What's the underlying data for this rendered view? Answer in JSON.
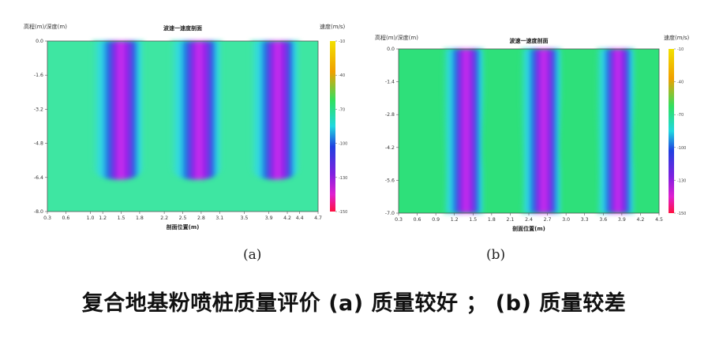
{
  "caption": "复合地基粉喷桩质量评价 (a) 质量较好 ； (b) 质量较差",
  "chart_data": [
    {
      "type": "heatmap",
      "panel_label": "(a)",
      "title": "波速一速度剖面",
      "y_axis_label": "高程(m)/深度(m)",
      "x_axis_label": "剖面位置(m)",
      "colorbar_label": "速度(m/s)",
      "x_ticks": [
        "0.3",
        "0.6",
        "1.0",
        "1.2",
        "1.5",
        "1.8",
        "2.2",
        "2.5",
        "2.8",
        "3.1",
        "3.5",
        "3.9",
        "4.2",
        "4.4",
        "4.7"
      ],
      "y_ticks": [
        "0.0",
        "-1.6",
        "-3.2",
        "-4.8",
        "-6.4",
        "-8.0"
      ],
      "colorbar_ticks": [
        "-10",
        "-40",
        "-70",
        "-100",
        "-130",
        "-150"
      ],
      "xlim": [
        0.3,
        4.7
      ],
      "ylim": [
        -8.0,
        0.0
      ],
      "background_color": "#3ee6a2",
      "anomalies": [
        {
          "x_center": 1.45,
          "half_width": 0.42,
          "bottom_depth": -6.5
        },
        {
          "x_center": 2.72,
          "half_width": 0.42,
          "bottom_depth": -6.5
        },
        {
          "x_center": 4.0,
          "half_width": 0.4,
          "bottom_depth": -6.5
        }
      ]
    },
    {
      "type": "heatmap",
      "panel_label": "(b)",
      "title": "波速一速度剖面",
      "y_axis_label": "高程(m)/深度(m)",
      "x_axis_label": "剖面位置(m)",
      "colorbar_label": "速度(m/s)",
      "x_ticks": [
        "0.3",
        "0.6",
        "0.9",
        "1.2",
        "1.5",
        "1.8",
        "2.1",
        "2.4",
        "2.7",
        "3.0",
        "3.3",
        "3.6",
        "3.9",
        "4.2",
        "4.5"
      ],
      "y_ticks": [
        "0.0",
        "-1.4",
        "-2.8",
        "-4.2",
        "-5.6",
        "-7.0"
      ],
      "colorbar_ticks": [
        "-10",
        "-40",
        "-70",
        "-100",
        "-130",
        "-150"
      ],
      "xlim": [
        0.3,
        4.5
      ],
      "ylim": [
        -7.0,
        0.0
      ],
      "background_color": "#2ee07a",
      "anomalies": [
        {
          "x_center": 1.35,
          "half_width": 0.32,
          "bottom_depth": -7.0
        },
        {
          "x_center": 2.6,
          "half_width": 0.32,
          "bottom_depth": -7.0
        },
        {
          "x_center": 3.8,
          "half_width": 0.3,
          "bottom_depth": -7.0
        }
      ]
    }
  ]
}
